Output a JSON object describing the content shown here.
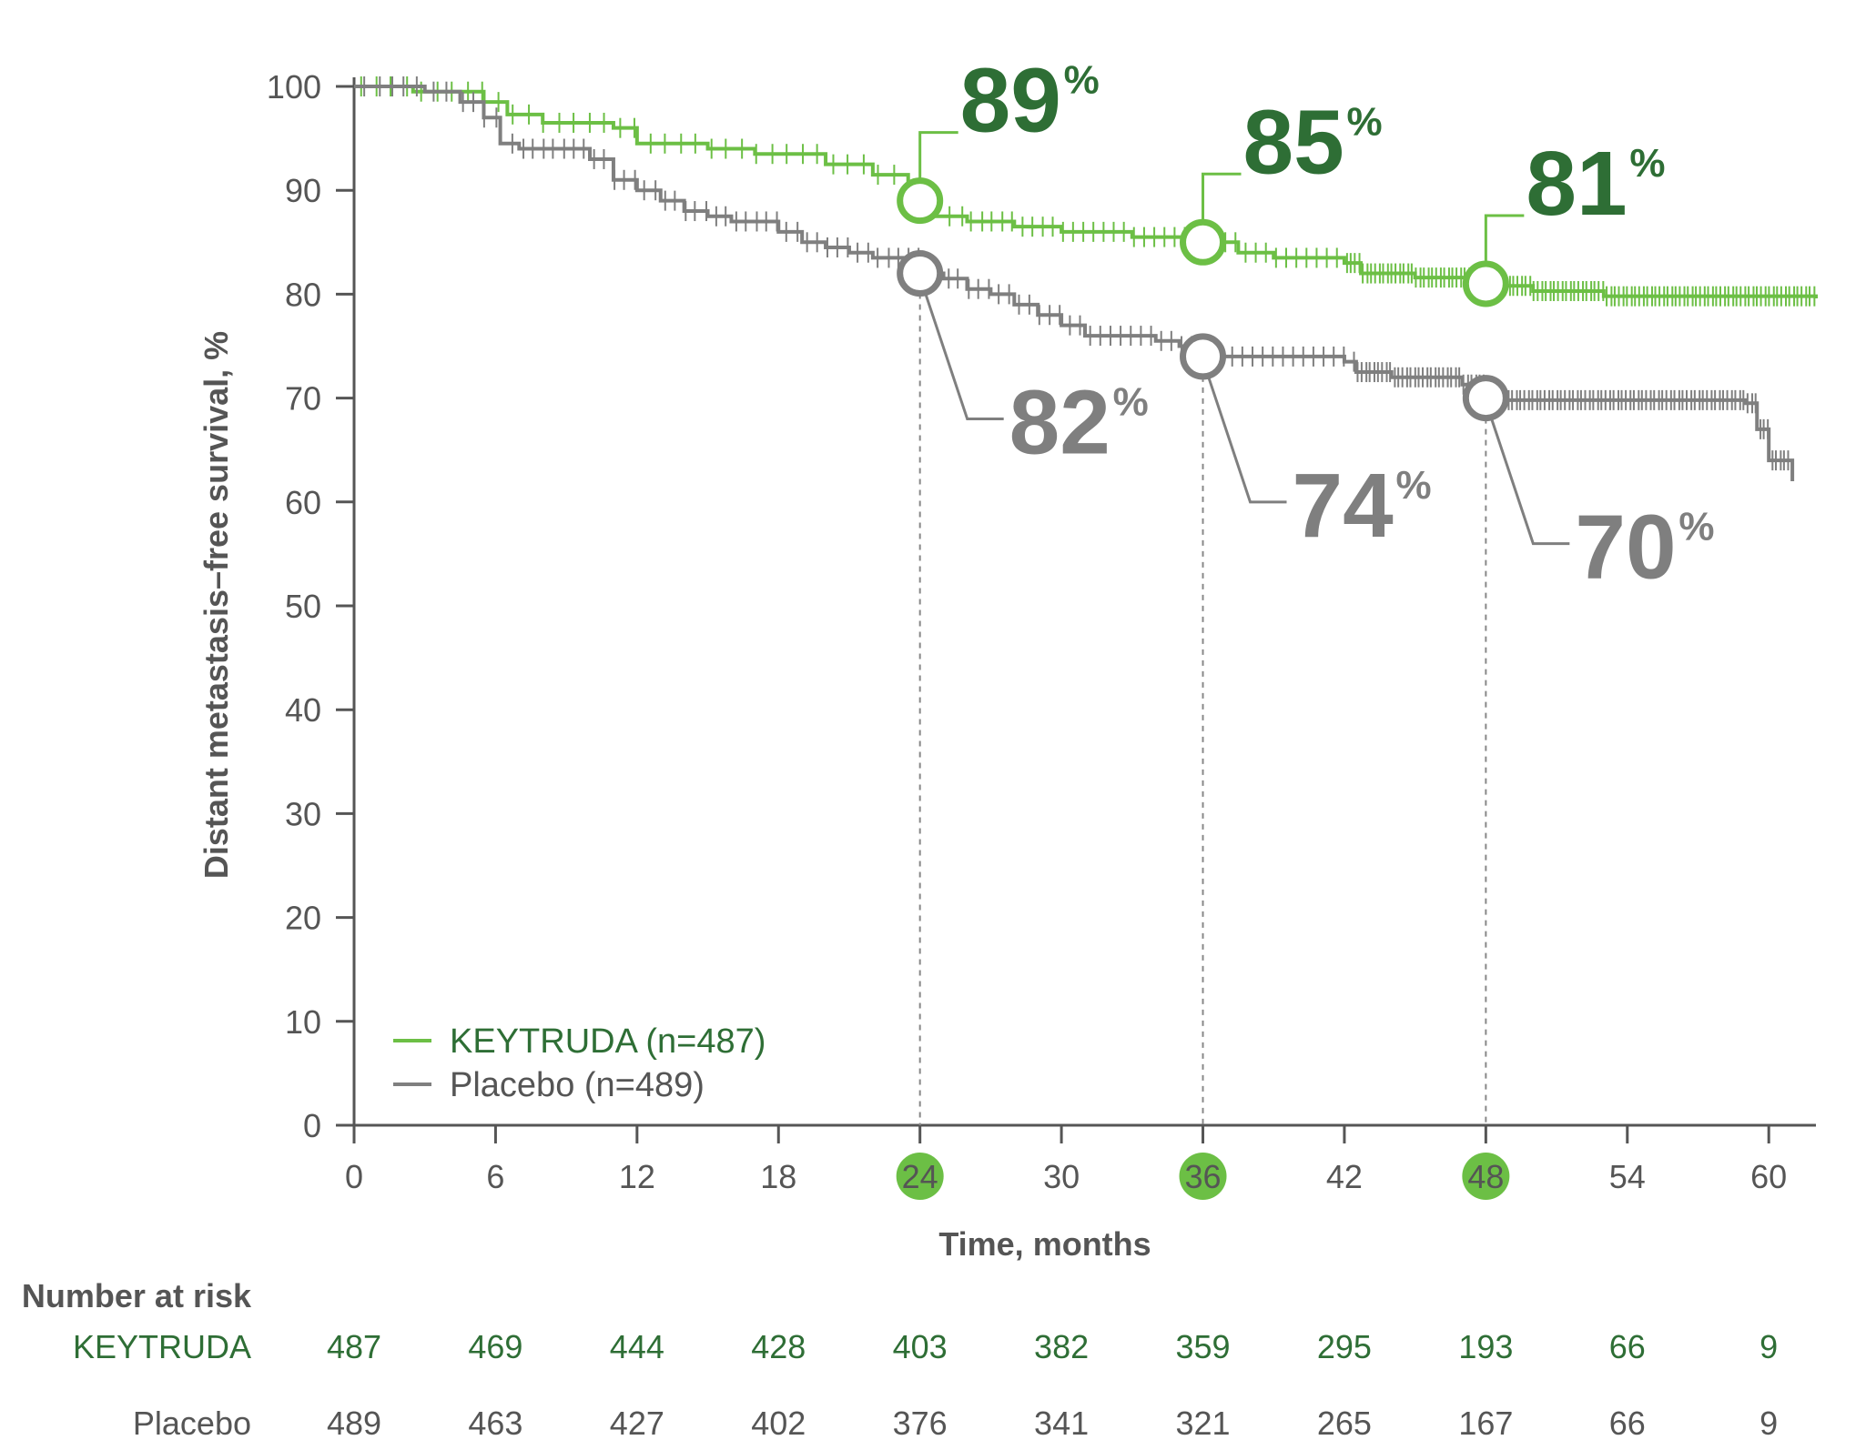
{
  "colors": {
    "keytruda": "#6cbf45",
    "keytruda_text": "#2e6e35",
    "placebo": "#7f7f7f",
    "placebo_text": "#555555",
    "axis": "#555555"
  },
  "chart_data": {
    "type": "line",
    "subtype": "kaplan-meier",
    "title": "",
    "xlabel": "Time, months",
    "ylabel": "Distant metastasis–free survival, %",
    "xlim": [
      0,
      62
    ],
    "ylim": [
      0,
      100
    ],
    "x_ticks": [
      0,
      6,
      12,
      18,
      24,
      30,
      36,
      42,
      48,
      54,
      60
    ],
    "y_ticks": [
      0,
      10,
      20,
      30,
      40,
      50,
      60,
      70,
      80,
      90,
      100
    ],
    "highlighted_x_ticks": [
      24,
      36,
      48
    ],
    "grid": false,
    "legend_position": "bottom-left",
    "series": [
      {
        "name": "KEYTRUDA (n=487)",
        "color": "#6cbf45",
        "x": [
          0,
          2.5,
          5.5,
          6.5,
          8,
          11,
          12,
          15,
          17,
          20,
          22,
          23.5,
          24,
          24.7,
          26,
          28,
          30,
          33,
          36,
          37.5,
          39,
          42,
          42.7,
          45,
          48,
          48.5,
          50,
          53,
          62
        ],
        "y": [
          100,
          99.5,
          98.5,
          97.3,
          96.5,
          96,
          94.5,
          94,
          93.5,
          92.5,
          91.5,
          90.5,
          89,
          87.5,
          87,
          86.5,
          86,
          85.5,
          85,
          84,
          83.5,
          83,
          82,
          81.6,
          81,
          80.8,
          80.3,
          79.8,
          79.6
        ],
        "callouts": [
          {
            "x": 24,
            "y": 89,
            "label": "89"
          },
          {
            "x": 36,
            "y": 85,
            "label": "85"
          },
          {
            "x": 48,
            "y": 81,
            "label": "81"
          }
        ]
      },
      {
        "name": "Placebo (n=489)",
        "color": "#7f7f7f",
        "x": [
          0,
          3,
          4.5,
          5.5,
          6.2,
          7,
          10,
          11,
          12,
          13,
          14,
          15,
          16,
          18,
          19,
          20,
          21,
          22,
          24,
          25,
          26,
          27,
          28,
          29,
          30,
          31,
          34,
          35,
          36,
          42,
          42.5,
          44,
          47,
          48,
          48.5,
          59,
          59.5,
          60,
          61
        ],
        "y": [
          100,
          99.5,
          98.5,
          97,
          94.5,
          94,
          93,
          91,
          90,
          89,
          88,
          87.5,
          87,
          86,
          85,
          84.5,
          84,
          83.5,
          82,
          81.5,
          80.5,
          80,
          79,
          78,
          77,
          76,
          75.5,
          75,
          74,
          73.5,
          72.5,
          72,
          71.3,
          70,
          69.8,
          69.5,
          67,
          64,
          62
        ],
        "callouts": [
          {
            "x": 24,
            "y": 82,
            "label": "82"
          },
          {
            "x": 36,
            "y": 74,
            "label": "74"
          },
          {
            "x": 48,
            "y": 70,
            "label": "70"
          }
        ]
      }
    ],
    "callout_unit": "%",
    "number_at_risk": {
      "title": "Number at risk",
      "rows": [
        {
          "label": "KEYTRUDA",
          "values": [
            487,
            469,
            444,
            428,
            403,
            382,
            359,
            295,
            193,
            66,
            9
          ]
        },
        {
          "label": "Placebo",
          "values": [
            489,
            463,
            427,
            402,
            376,
            341,
            321,
            265,
            167,
            66,
            9
          ]
        }
      ]
    }
  }
}
